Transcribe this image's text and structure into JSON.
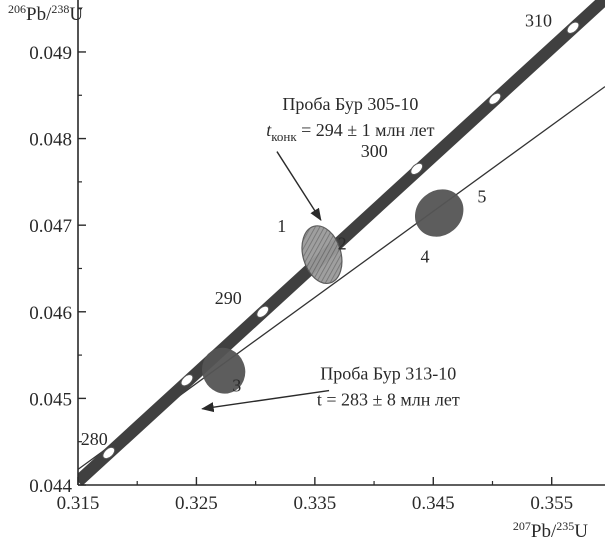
{
  "chart_data": {
    "type": "scatter",
    "title": "",
    "xlabel": {
      "sup1": "207",
      "main1": "Pb/",
      "sup2": "235",
      "main2": "U"
    },
    "ylabel": {
      "sup1": "206",
      "main1": "Pb/",
      "sup2": "238",
      "main2": "U"
    },
    "xlim": [
      0.315,
      0.3595
    ],
    "ylim": [
      0.044,
      0.0496
    ],
    "x_ticks": [
      "0.315",
      "0.325",
      "0.335",
      "0.345",
      "0.355"
    ],
    "y_ticks": [
      "0.044",
      "0.045",
      "0.046",
      "0.047",
      "0.048",
      "0.049"
    ],
    "concordia_ages": [
      {
        "age_ma": 280,
        "label": "280",
        "x": 0.3176,
        "y": 0.04437
      },
      {
        "age_ma": 285,
        "label": "",
        "x": 0.3242,
        "y": 0.04521
      },
      {
        "age_ma": 290,
        "label": "290",
        "x": 0.3306,
        "y": 0.046
      },
      {
        "age_ma": 300,
        "label": "300",
        "x": 0.3436,
        "y": 0.04765
      },
      {
        "age_ma": 305,
        "label": "",
        "x": 0.3502,
        "y": 0.04846
      },
      {
        "age_ma": 310,
        "label": "310",
        "x": 0.3568,
        "y": 0.04928
      }
    ],
    "concordia_line": {
      "x": [
        0.315,
        0.3595
      ],
      "y": [
        0.04404,
        0.04961
      ]
    },
    "discordia_line": {
      "x": [
        0.315,
        0.3595
      ],
      "y": [
        0.04418,
        0.0486
      ]
    },
    "ellipses": [
      {
        "sample": "305-10",
        "label": "",
        "cx": 0.3356,
        "cy": 0.04666,
        "rx": 0.0016,
        "ry": 0.00034,
        "tilt_deg": -16,
        "color": "#8a8a8a",
        "hatched": true
      },
      {
        "sample": "313-10",
        "label": "3",
        "cx": 0.3273,
        "cy": 0.04532,
        "rx": 0.00175,
        "ry": 0.00026,
        "tilt_deg": -22,
        "color": "#555555",
        "hatched": false
      },
      {
        "sample": "313-10",
        "label": "4",
        "cx": 0.3455,
        "cy": 0.04714,
        "rx": 0.0021,
        "ry": 0.00025,
        "tilt_deg": -40,
        "color": "#555555",
        "hatched": false
      }
    ],
    "point_labels": [
      {
        "text": "1",
        "x": 0.3322,
        "y": 0.04692
      },
      {
        "text": "2",
        "x": 0.3373,
        "y": 0.04672
      },
      {
        "text": "3",
        "x": 0.3284,
        "y": 0.04508
      },
      {
        "text": "4",
        "x": 0.3443,
        "y": 0.04657
      },
      {
        "text": "5",
        "x": 0.3491,
        "y": 0.04726
      }
    ],
    "annotations": [
      {
        "name": "sample-305-annotation",
        "line1": "Проба Бур 305-10",
        "line2_t": "t",
        "line2_sub": "конк",
        "line2_rest": " = 294 ± 1 млн лет",
        "text_x": 0.338,
        "text_y": 0.04833,
        "arrow_from": [
          0.3318,
          0.04785
        ],
        "arrow_to": [
          0.3355,
          0.04706
        ]
      },
      {
        "name": "sample-313-annotation",
        "line1": "Проба Бур 313-10",
        "line2": "t = 283 ± 8 млн лет",
        "text_x": 0.3412,
        "text_y": 0.04522,
        "arrow_from": [
          0.3362,
          0.04509
        ],
        "arrow_to": [
          0.3255,
          0.04488
        ]
      }
    ],
    "colors": {
      "concordia": "#404040",
      "discordia": "#333333",
      "ellipse_dark": "#555555",
      "ellipse_hatched": "#8a8a8a",
      "axis": "#2a2a2a"
    }
  }
}
